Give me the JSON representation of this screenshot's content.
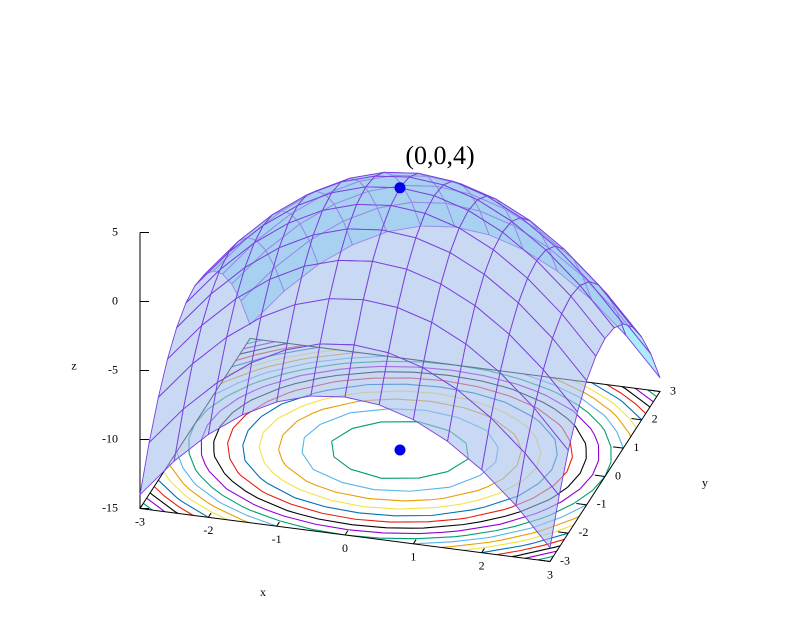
{
  "chart_data": {
    "type": "surface3d",
    "x": [
      -3,
      -2.5,
      -2,
      -1.5,
      -1,
      -0.5,
      0,
      0.5,
      1,
      1.5,
      2,
      2.5,
      3
    ],
    "y": [
      -3,
      -2.5,
      -2,
      -1.5,
      -1,
      -0.5,
      0,
      0.5,
      1,
      1.5,
      2,
      2.5,
      3
    ],
    "z": [
      [
        -14,
        -11.25,
        -9,
        -7.25,
        -6,
        -5.25,
        -5,
        -5.25,
        -6,
        -7.25,
        -9,
        -11.25,
        -14
      ],
      [
        -11.25,
        -8.5,
        -6.25,
        -4.5,
        -3.25,
        -2.5,
        -2.25,
        -2.5,
        -3.25,
        -4.5,
        -6.25,
        -8.5,
        -11.25
      ],
      [
        -9,
        -6.25,
        -4,
        -2.25,
        -1,
        -0.25,
        0,
        -0.25,
        -1,
        -2.25,
        -4,
        -6.25,
        -9
      ],
      [
        -7.25,
        -4.5,
        -2.25,
        -0.5,
        0.75,
        1.5,
        1.75,
        1.5,
        0.75,
        -0.5,
        -2.25,
        -4.5,
        -7.25
      ],
      [
        -6,
        -3.25,
        -1,
        0.75,
        2,
        2.75,
        3,
        2.75,
        2,
        0.75,
        -1,
        -3.25,
        -6
      ],
      [
        -5.25,
        -2.5,
        -0.25,
        1.5,
        2.75,
        3.5,
        3.75,
        3.5,
        2.75,
        1.5,
        -0.25,
        -2.5,
        -5.25
      ],
      [
        -5,
        -2.25,
        0,
        1.75,
        3,
        3.75,
        4,
        3.75,
        3,
        1.75,
        0,
        -2.25,
        -5
      ],
      [
        -5.25,
        -2.5,
        -0.25,
        1.5,
        2.75,
        3.5,
        3.75,
        3.5,
        2.75,
        1.5,
        -0.25,
        -2.5,
        -5.25
      ],
      [
        -6,
        -3.25,
        -1,
        0.75,
        2,
        2.75,
        3,
        2.75,
        2,
        0.75,
        -1,
        -3.25,
        -6
      ],
      [
        -7.25,
        -4.5,
        -2.25,
        -0.5,
        0.75,
        1.5,
        1.75,
        1.5,
        0.75,
        -0.5,
        -2.25,
        -4.5,
        -7.25
      ],
      [
        -9,
        -6.25,
        -4,
        -2.25,
        -1,
        -0.25,
        0,
        -0.25,
        -1,
        -2.25,
        -4,
        -6.25,
        -9
      ],
      [
        -11.25,
        -8.5,
        -6.25,
        -4.5,
        -3.25,
        -2.5,
        -2.25,
        -2.5,
        -3.25,
        -4.5,
        -6.25,
        -8.5,
        -11.25
      ],
      [
        -14,
        -11.25,
        -9,
        -7.25,
        -6,
        -5.25,
        -5,
        -5.25,
        -6,
        -7.25,
        -9,
        -11.25,
        -14
      ]
    ],
    "xlim": [
      -3,
      3
    ],
    "ylim": [
      -3,
      3
    ],
    "zlim": [
      -15,
      5
    ],
    "xticks": [
      -3,
      -2,
      -1,
      0,
      1,
      2,
      3
    ],
    "yticks": [
      -3,
      -2,
      -1,
      0,
      1,
      2,
      3
    ],
    "zticks": [
      -15,
      -10,
      -5,
      0,
      5
    ],
    "xlabel": "x",
    "ylabel": "y",
    "zlabel": "z",
    "top_color": "rgba(165,190,235,0.6)",
    "bottom_color": "rgba(90,215,245,0.5)",
    "mesh_color": "#7a3fe0",
    "contour_levels": [
      3,
      2,
      1,
      0,
      -1,
      -2,
      -3,
      -4,
      -5,
      -6,
      -7,
      -8,
      -9,
      -10,
      -11,
      -12,
      -13,
      -14
    ],
    "contour_colors": [
      "#009e73",
      "#56b4e9",
      "#e69f00",
      "#f0e442",
      "#0072b2",
      "#e51e10",
      "#000000",
      "#9400d3"
    ],
    "points": [
      {
        "x": 0,
        "y": 0,
        "z": 4,
        "label": "(0,0,4)",
        "color": "#0000ee"
      }
    ]
  }
}
